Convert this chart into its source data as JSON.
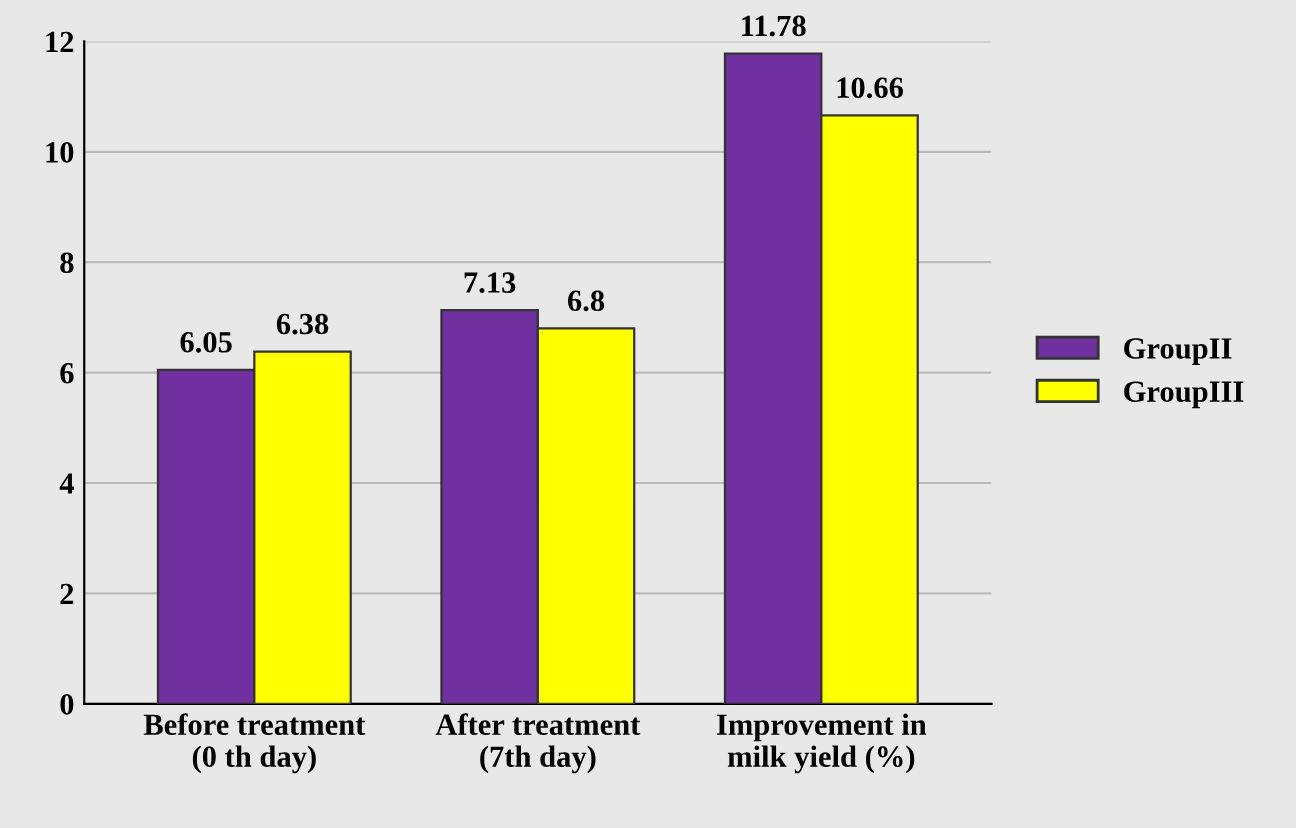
{
  "chart_data": {
    "type": "bar",
    "categories": [
      "Before treatment\n(0 th day)",
      "After treatment\n(7th day)",
      "Improvement in\nmilk yield (%)"
    ],
    "series": [
      {
        "name": "GroupII",
        "color": "#7030a0",
        "values": [
          6.05,
          7.13,
          11.78
        ]
      },
      {
        "name": "GroupIII",
        "color": "#ffff00",
        "values": [
          6.38,
          6.8,
          10.66
        ]
      }
    ],
    "ylim": [
      0,
      12
    ],
    "yticks": [
      0,
      2,
      4,
      6,
      8,
      10,
      12
    ],
    "grid": "y",
    "legend": "right",
    "data_labels": true
  }
}
